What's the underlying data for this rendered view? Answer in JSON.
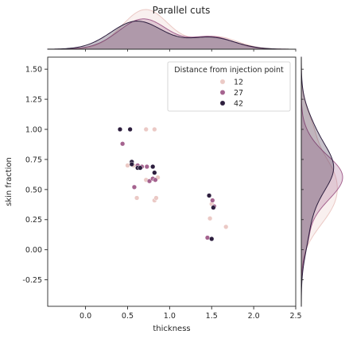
{
  "chart_data": {
    "type": "scatter",
    "title": "Parallel cuts",
    "xlabel": "thickness",
    "ylabel": "skin fraction",
    "xlim": [
      -0.45,
      2.5
    ],
    "ylim": [
      -0.47,
      1.6
    ],
    "xticks": [
      "0.0",
      "0.5",
      "1.0",
      "1.5",
      "2.0",
      "2.5"
    ],
    "xtick_values": [
      0.0,
      0.5,
      1.0,
      1.5,
      2.0,
      2.5
    ],
    "yticks": [
      "-0.25",
      "0.00",
      "0.25",
      "0.50",
      "0.75",
      "1.00",
      "1.25",
      "1.50"
    ],
    "ytick_values": [
      -0.25,
      0.0,
      0.25,
      0.5,
      0.75,
      1.0,
      1.25,
      1.5
    ],
    "grid": false,
    "legend": {
      "title": "Distance from injection point",
      "placement": "top-right"
    },
    "marginals": {
      "top": "kde",
      "right": "kde"
    },
    "series": [
      {
        "name": "12",
        "color": "#ebc9c5",
        "points": [
          [
            0.5,
            0.7
          ],
          [
            0.57,
            0.7
          ],
          [
            0.61,
            0.43
          ],
          [
            0.64,
            0.69
          ],
          [
            0.72,
            1.0
          ],
          [
            0.72,
            0.58
          ],
          [
            0.82,
            1.0
          ],
          [
            0.82,
            0.41
          ],
          [
            0.84,
            0.43
          ],
          [
            0.86,
            0.6
          ],
          [
            1.48,
            0.26
          ],
          [
            1.5,
            0.38
          ],
          [
            1.67,
            0.19
          ]
        ]
      },
      {
        "name": "27",
        "color": "#a5638f",
        "points": [
          [
            0.44,
            0.88
          ],
          [
            0.58,
            0.52
          ],
          [
            0.62,
            0.7
          ],
          [
            0.67,
            0.69
          ],
          [
            0.73,
            0.69
          ],
          [
            0.76,
            0.57
          ],
          [
            0.8,
            0.59
          ],
          [
            0.83,
            0.58
          ],
          [
            1.45,
            0.1
          ],
          [
            1.51,
            0.41
          ],
          [
            1.53,
            0.36
          ]
        ]
      },
      {
        "name": "42",
        "color": "#2d1e3e",
        "points": [
          [
            0.41,
            1.0
          ],
          [
            0.53,
            1.0
          ],
          [
            0.55,
            0.73
          ],
          [
            0.55,
            0.71
          ],
          [
            0.62,
            0.68
          ],
          [
            0.65,
            0.68
          ],
          [
            0.8,
            0.69
          ],
          [
            0.82,
            0.64
          ],
          [
            1.47,
            0.45
          ],
          [
            1.5,
            0.09
          ],
          [
            1.52,
            0.35
          ]
        ]
      }
    ]
  }
}
